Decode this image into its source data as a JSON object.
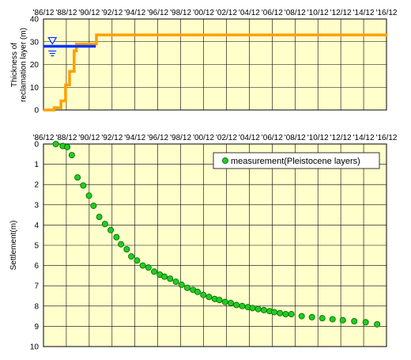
{
  "colors": {
    "plot_bg": "#ffffcc",
    "grid": "#000000",
    "thickness_line": "#ffa000",
    "water_line": "#0033ff",
    "water_symbol": "#0033ff",
    "marker_fill": "#22cc22",
    "marker_stroke": "#006600"
  },
  "icons": {
    "water_level": "water-level-triangle-icon"
  },
  "chart_data": [
    {
      "type": "line",
      "title": "",
      "xlabel": "",
      "ylabel": "Thickness of reclamation layer (m)",
      "ylabel_lines": [
        "Thickness of",
        "reclamation layer (m)"
      ],
      "x_tick_labels": [
        "'86/12",
        "'88/12",
        "'90/12",
        "'92/12",
        "'94/12",
        "'96/12",
        "'98/12",
        "'00/12",
        "'02/12",
        "'04/12",
        "'06/12",
        "'08/12",
        "'10/12",
        "'12/12",
        "'14/12",
        "'16/12"
      ],
      "xlim": [
        1986.92,
        2016.92
      ],
      "ylim": [
        0,
        40
      ],
      "y_tick_labels": [
        "0",
        "10",
        "20",
        "30",
        "40"
      ],
      "y_ticks": [
        0,
        10,
        20,
        30,
        40
      ],
      "grid": true,
      "series": [
        {
          "x": [
            1986.92,
            1987.85,
            1987.85,
            1988.45,
            1988.45,
            1988.85,
            1988.85,
            1989.2,
            1989.2,
            1989.6,
            1989.6,
            1989.8,
            1989.8,
            1991.55,
            1991.55,
            2017.0
          ],
          "y": [
            0,
            0,
            1,
            1,
            4,
            4,
            11,
            11,
            17,
            17,
            26,
            26,
            29,
            29,
            33,
            33
          ],
          "style": "step-line"
        }
      ],
      "water_level": {
        "y": 28,
        "x_start": 1986.92,
        "x_end": 1991.5,
        "symbol_x": 1987.7
      }
    },
    {
      "type": "scatter",
      "title": "",
      "xlabel": "",
      "ylabel": "Settlement(m)",
      "x_tick_labels": [
        "'86/12",
        "'88/12",
        "'90/12",
        "'92/12",
        "'94/12",
        "'96/12",
        "'98/12",
        "'00/12",
        "'02/12",
        "'04/12",
        "'06/12",
        "'08/12",
        "'10/12",
        "'12/12",
        "'14/12",
        "'16/12"
      ],
      "xlim": [
        1986.92,
        2016.92
      ],
      "ylim": [
        0,
        10
      ],
      "y_inverted": true,
      "y_tick_labels": [
        "0",
        "1",
        "2",
        "3",
        "4",
        "5",
        "6",
        "7",
        "8",
        "9",
        "10"
      ],
      "y_ticks": [
        0,
        1,
        2,
        3,
        4,
        5,
        6,
        7,
        8,
        9,
        10
      ],
      "grid": true,
      "legend": {
        "position": "top-right"
      },
      "series": [
        {
          "name": "measurement(Pleistocene layers)",
          "x": [
            1988.0,
            1988.6,
            1989.0,
            1989.4,
            1989.9,
            1990.4,
            1990.9,
            1991.3,
            1991.8,
            1992.3,
            1992.8,
            1993.3,
            1993.7,
            1994.2,
            1994.6,
            1995.1,
            1995.6,
            1996.1,
            1996.6,
            1997.1,
            1997.5,
            1998.0,
            1998.5,
            1999.0,
            1999.5,
            2000.0,
            2000.4,
            2000.9,
            2001.4,
            2001.9,
            2002.3,
            2002.8,
            2003.3,
            2003.8,
            2004.3,
            2004.8,
            2005.2,
            2005.7,
            2006.2,
            2006.7,
            2007.1,
            2007.6,
            2008.1,
            2008.6,
            2009.5,
            2010.4,
            2011.3,
            2012.2,
            2013.1,
            2014.1,
            2015.1,
            2016.1
          ],
          "y": [
            0.0,
            0.1,
            0.15,
            0.55,
            1.65,
            2.05,
            2.55,
            3.05,
            3.6,
            3.95,
            4.25,
            4.6,
            4.95,
            5.2,
            5.55,
            5.75,
            6.0,
            6.1,
            6.3,
            6.45,
            6.55,
            6.65,
            6.8,
            6.95,
            7.1,
            7.2,
            7.3,
            7.45,
            7.55,
            7.65,
            7.7,
            7.8,
            7.85,
            7.95,
            8.0,
            8.05,
            8.1,
            8.15,
            8.2,
            8.25,
            8.3,
            8.35,
            8.4,
            8.4,
            8.5,
            8.55,
            8.6,
            8.65,
            8.7,
            8.75,
            8.8,
            8.9
          ]
        }
      ]
    }
  ]
}
